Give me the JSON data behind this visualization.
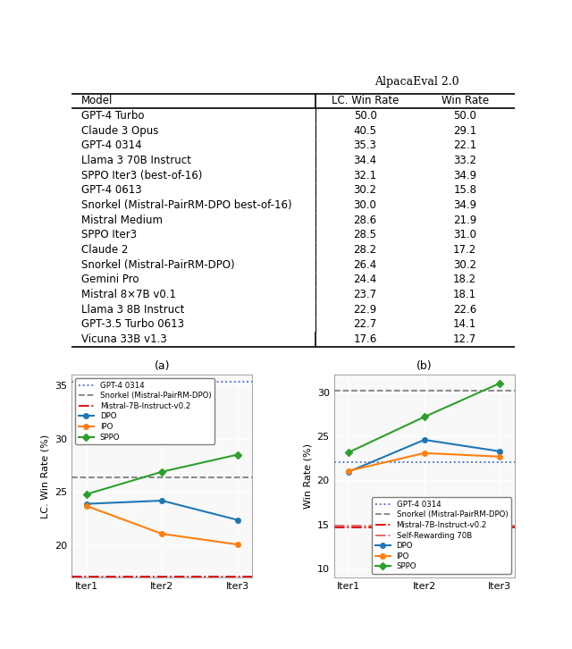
{
  "table": {
    "models": [
      "GPT-4 Turbo",
      "Claude 3 Opus",
      "GPT-4 0314",
      "Llama 3 70B Instruct",
      "SPPO Iter3 (best-of-16)",
      "GPT-4 0613",
      "Snorkel (Mistral-PairRM-DPO best-of-16)",
      "Mistral Medium",
      "SPPO Iter3",
      "Claude 2",
      "Snorkel (Mistral-PairRM-DPO)",
      "Gemini Pro",
      "Mistral 8×7B v0.1",
      "Llama 3 8B Instruct",
      "GPT-3.5 Turbo 0613",
      "Vicuna 33B v1.3"
    ],
    "lc_win_rate": [
      50.0,
      40.5,
      35.3,
      34.4,
      32.1,
      30.2,
      30.0,
      28.6,
      28.5,
      28.2,
      26.4,
      24.4,
      23.7,
      22.9,
      22.7,
      17.6
    ],
    "win_rate": [
      50.0,
      29.1,
      22.1,
      33.2,
      34.9,
      15.8,
      34.9,
      21.9,
      31.0,
      17.2,
      30.2,
      18.2,
      18.1,
      22.6,
      14.1,
      12.7
    ],
    "highlighted_rows": [
      4,
      8
    ],
    "highlight_color": "#cce5ff"
  },
  "plot_a": {
    "title": "(a)",
    "ylabel": "LC. Win Rate (%)",
    "xlabel": "Iter",
    "iters": [
      "Iter1",
      "Iter2",
      "Iter3"
    ],
    "gpt4_0314_lc": 35.3,
    "snorkel_lc": 26.4,
    "mistral_instruct_lc": 17.1,
    "dpo_lc": [
      23.9,
      24.2,
      22.4
    ],
    "ipo_lc": [
      23.7,
      21.1,
      20.1
    ],
    "sppo_lc": [
      24.8,
      26.9,
      28.5
    ],
    "ylim": [
      17,
      36
    ],
    "yticks": [
      20,
      25,
      30,
      35
    ],
    "gpt4_color": "#4169e1",
    "snorkel_color": "#808080",
    "mistral_color": "#e00000",
    "dpo_color": "#1f77b4",
    "ipo_color": "#ff7f0e",
    "sppo_color": "#2ca02c"
  },
  "plot_b": {
    "title": "(b)",
    "ylabel": "Win Rate (%)",
    "xlabel": "Iter",
    "iters": [
      "Iter1",
      "Iter2",
      "Iter3"
    ],
    "gpt4_0314_wr": 22.1,
    "snorkel_wr": 30.2,
    "mistral_instruct_wr": 14.7,
    "self_rewarding_wr": 14.9,
    "dpo_wr": [
      21.0,
      24.6,
      23.3
    ],
    "ipo_wr": [
      21.1,
      23.1,
      22.7
    ],
    "sppo_wr": [
      23.2,
      27.2,
      31.0
    ],
    "ylim": [
      9,
      32
    ],
    "yticks": [
      10,
      15,
      20,
      25,
      30
    ],
    "gpt4_color": "#4169e1",
    "snorkel_color": "#808080",
    "mistral_color": "#e00000",
    "self_rewarding_color": "#e06060",
    "dpo_color": "#1f77b4",
    "ipo_color": "#ff7f0e",
    "sppo_color": "#2ca02c"
  }
}
